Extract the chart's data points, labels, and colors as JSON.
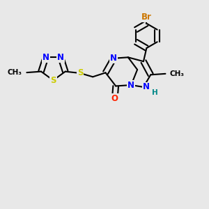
{
  "bg_color": "#e8e8e8",
  "bond_color": "#000000",
  "bond_width": 1.5,
  "atom_colors": {
    "N": "#0000ff",
    "S": "#cccc00",
    "O": "#ff2200",
    "Br": "#cc7700",
    "H": "#008888",
    "C": "#000000"
  },
  "font_size": 8.5
}
